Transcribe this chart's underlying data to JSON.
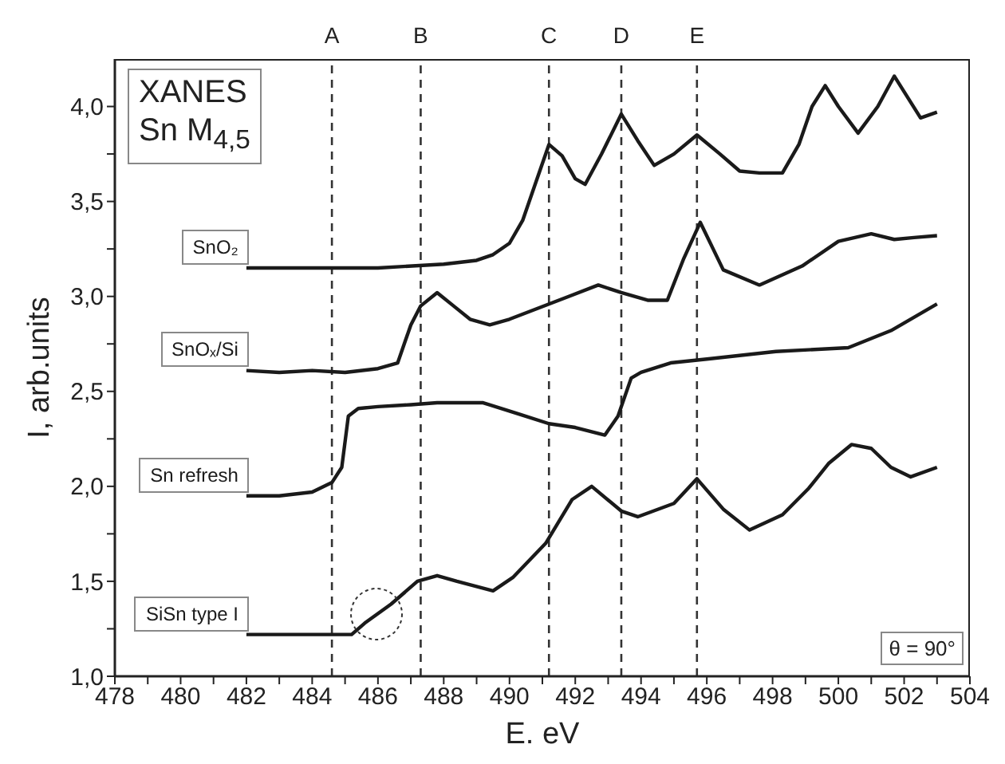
{
  "chart_data": {
    "type": "line",
    "xlabel": "E. eV",
    "ylabel": "I, arb.units",
    "xlim": [
      478,
      504
    ],
    "ylim": [
      1.0,
      4.25
    ],
    "xticks": [
      478,
      {
        "value": 479,
        "label": null
      },
      480,
      {
        "value": 481,
        "label": null
      },
      482,
      {
        "value": 483,
        "label": null
      },
      484,
      {
        "value": 485,
        "label": null
      },
      486,
      {
        "value": 487,
        "label": null
      },
      488,
      {
        "value": 489,
        "label": null
      },
      490,
      {
        "value": 491,
        "label": null
      },
      492,
      {
        "value": 493,
        "label": null
      },
      494,
      {
        "value": 495,
        "label": null
      },
      496,
      {
        "value": 497,
        "label": null
      },
      498,
      {
        "value": 499,
        "label": null
      },
      500,
      {
        "value": 501,
        "label": null
      },
      502,
      {
        "value": 503,
        "label": null
      },
      504
    ],
    "yticks": [
      {
        "value": 1.0,
        "label": "1,0"
      },
      {
        "value": 1.25,
        "label": null
      },
      {
        "value": 1.5,
        "label": "1,5"
      },
      {
        "value": 1.75,
        "label": null
      },
      {
        "value": 2.0,
        "label": "2,0"
      },
      {
        "value": 2.25,
        "label": null
      },
      {
        "value": 2.5,
        "label": "2,5"
      },
      {
        "value": 2.75,
        "label": null
      },
      {
        "value": 3.0,
        "label": "3,0"
      },
      {
        "value": 3.25,
        "label": null
      },
      {
        "value": 3.5,
        "label": "3,5"
      },
      {
        "value": 3.75,
        "label": null
      },
      {
        "value": 4.0,
        "label": "4,0"
      }
    ],
    "grid": false,
    "marker": "none",
    "line_style": "solid",
    "series": [
      {
        "name": "SnO₂",
        "color": "#1a1a1a",
        "x": [
          482,
          484,
          486,
          488,
          489,
          489.5,
          490,
          490.4,
          490.8,
          491.2,
          491.6,
          492,
          492.3,
          492.8,
          493.4,
          493.9,
          494.4,
          495,
          495.7,
          496.4,
          497,
          497.6,
          498.3,
          498.8,
          499.2,
          499.6,
          500,
          500.6,
          501.2,
          501.7,
          502.1,
          502.5,
          503
        ],
        "values": [
          3.15,
          3.15,
          3.15,
          3.17,
          3.19,
          3.22,
          3.28,
          3.4,
          3.6,
          3.8,
          3.74,
          3.62,
          3.59,
          3.75,
          3.96,
          3.82,
          3.69,
          3.75,
          3.85,
          3.75,
          3.66,
          3.65,
          3.65,
          3.8,
          4.0,
          4.11,
          4.0,
          3.86,
          4.0,
          4.16,
          4.05,
          3.94,
          3.97
        ]
      },
      {
        "name": "SnOₓ/Si",
        "color": "#1a1a1a",
        "x": [
          482,
          483,
          484,
          485,
          486,
          486.6,
          487,
          487.3,
          487.8,
          488.3,
          488.8,
          489.4,
          490,
          490.6,
          491.2,
          491.8,
          492.7,
          493.4,
          494.2,
          494.8,
          495.3,
          495.8,
          496.5,
          497.6,
          498.9,
          500,
          501,
          501.7,
          502.3,
          503
        ],
        "values": [
          2.61,
          2.6,
          2.61,
          2.6,
          2.62,
          2.65,
          2.85,
          2.95,
          3.02,
          2.95,
          2.88,
          2.85,
          2.88,
          2.92,
          2.96,
          3.0,
          3.06,
          3.02,
          2.98,
          2.98,
          3.2,
          3.39,
          3.14,
          3.06,
          3.16,
          3.29,
          3.33,
          3.3,
          3.31,
          3.32
        ]
      },
      {
        "name": "Sn refresh",
        "color": "#1a1a1a",
        "x": [
          482,
          483,
          484,
          484.6,
          484.9,
          485.1,
          485.4,
          486,
          487,
          487.8,
          489.2,
          490.3,
          491.2,
          492,
          492.9,
          493.3,
          493.7,
          494,
          494.9,
          496,
          498.1,
          500.3,
          501.6,
          503
        ],
        "values": [
          1.95,
          1.95,
          1.97,
          2.02,
          2.1,
          2.37,
          2.41,
          2.42,
          2.43,
          2.44,
          2.44,
          2.38,
          2.33,
          2.31,
          2.27,
          2.37,
          2.57,
          2.6,
          2.65,
          2.67,
          2.71,
          2.73,
          2.82,
          2.96
        ]
      },
      {
        "name": "SiSn type I",
        "color": "#1a1a1a",
        "x": [
          482,
          483,
          484,
          485.2,
          485.6,
          486.4,
          487.2,
          487.8,
          488.4,
          489.5,
          490.1,
          491.1,
          491.9,
          492.5,
          493.4,
          493.9,
          495,
          495.7,
          496.5,
          497.3,
          498.3,
          499.1,
          499.7,
          500.4,
          501,
          501.6,
          502.2,
          503
        ],
        "values": [
          1.22,
          1.22,
          1.22,
          1.22,
          1.28,
          1.38,
          1.5,
          1.53,
          1.5,
          1.45,
          1.52,
          1.7,
          1.93,
          2.0,
          1.87,
          1.84,
          1.91,
          2.04,
          1.88,
          1.77,
          1.85,
          1.99,
          2.12,
          2.22,
          2.2,
          2.1,
          2.05,
          2.1
        ]
      }
    ],
    "ref_lines": [
      {
        "axis": "x",
        "value": 484.6,
        "label": "A",
        "line_style": "dashed",
        "color": "#333333"
      },
      {
        "axis": "x",
        "value": 487.3,
        "label": "B",
        "line_style": "dashed",
        "color": "#333333"
      },
      {
        "axis": "x",
        "value": 491.2,
        "label": "C",
        "line_style": "dashed",
        "color": "#333333"
      },
      {
        "axis": "x",
        "value": 493.4,
        "label": "D",
        "line_style": "dashed",
        "color": "#333333"
      },
      {
        "axis": "x",
        "value": 495.7,
        "label": "E",
        "line_style": "dashed",
        "color": "#333333"
      }
    ],
    "annotations": [
      "XANES",
      "Sn M$_{4,5}$",
      "θ = 90°"
    ]
  }
}
